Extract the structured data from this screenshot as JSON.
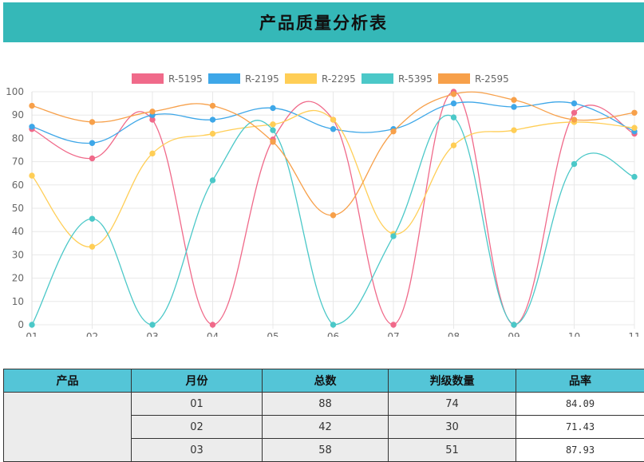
{
  "page": {
    "title": "产品质量分析表"
  },
  "chart_data": {
    "type": "line",
    "categories": [
      "01",
      "02",
      "03",
      "04",
      "05",
      "06",
      "07",
      "08",
      "09",
      "10",
      "11"
    ],
    "series": [
      {
        "name": "R-5195",
        "color": "#f06a8a",
        "values": [
          84,
          71.4,
          88,
          0,
          79.5,
          88,
          0,
          100,
          0,
          91,
          82
        ]
      },
      {
        "name": "R-2195",
        "color": "#3ea7e8",
        "values": [
          85,
          78,
          90,
          88,
          93,
          84,
          84,
          95,
          93.5,
          95,
          83
        ]
      },
      {
        "name": "R-2295",
        "color": "#ffce56",
        "values": [
          64,
          33.5,
          73.5,
          82,
          86,
          88,
          39,
          77,
          83.5,
          87,
          84.5
        ]
      },
      {
        "name": "R-5395",
        "color": "#4bc8c8",
        "values": [
          0,
          45.5,
          0,
          62,
          83.5,
          0,
          38,
          89,
          0,
          69,
          63.5
        ]
      },
      {
        "name": "R-2595",
        "color": "#f7a04a",
        "values": [
          94,
          87,
          91.5,
          94,
          78.5,
          47,
          83,
          99,
          96.5,
          88,
          91
        ]
      }
    ],
    "ylim": [
      0,
      100
    ],
    "yticks": [
      "0",
      "10",
      "20",
      "30",
      "40",
      "50",
      "60",
      "70",
      "80",
      "90",
      "100"
    ],
    "grid": true,
    "legend_position": "top-center"
  },
  "table": {
    "headers": [
      "产品",
      "月份",
      "总数",
      "判级数量",
      "品率"
    ],
    "rows": [
      {
        "product": "",
        "month": "01",
        "total": "88",
        "graded": "74",
        "rate": "84.09"
      },
      {
        "product": "",
        "month": "02",
        "total": "42",
        "graded": "30",
        "rate": "71.43"
      },
      {
        "product": "",
        "month": "03",
        "total": "58",
        "graded": "51",
        "rate": "87.93"
      }
    ]
  }
}
